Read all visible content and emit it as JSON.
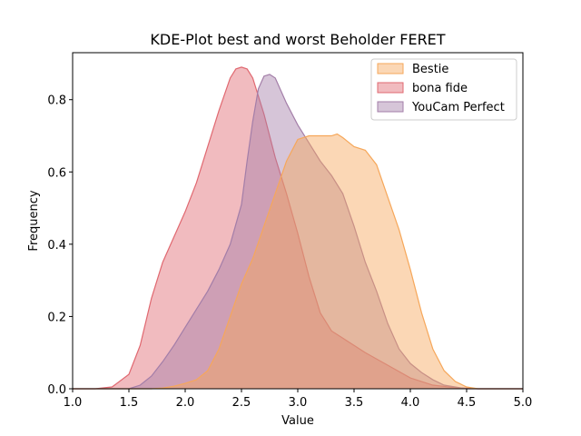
{
  "chart_data": {
    "type": "area",
    "title": "KDE-Plot best and worst Beholder FERET",
    "xlabel": "Value",
    "ylabel": "Frequency",
    "xlim": [
      1.0,
      5.0
    ],
    "ylim": [
      0.0,
      0.93
    ],
    "xticks": [
      "1.0",
      "1.5",
      "2.0",
      "2.5",
      "3.0",
      "3.5",
      "4.0",
      "4.5",
      "5.0"
    ],
    "yticks": [
      "0.0",
      "0.2",
      "0.4",
      "0.6",
      "0.8"
    ],
    "grid": false,
    "legend_position": "top-right",
    "series": [
      {
        "name": "bona fide",
        "color": "#e06870",
        "x": [
          1.0,
          1.2,
          1.35,
          1.5,
          1.6,
          1.7,
          1.8,
          1.9,
          2.0,
          2.1,
          2.2,
          2.3,
          2.4,
          2.45,
          2.5,
          2.55,
          2.6,
          2.7,
          2.8,
          2.9,
          3.0,
          3.1,
          3.2,
          3.3,
          3.4,
          3.5,
          3.6,
          3.8,
          4.0,
          4.2,
          4.4,
          4.6,
          5.0
        ],
        "y": [
          0.0,
          0.0,
          0.005,
          0.04,
          0.12,
          0.25,
          0.35,
          0.42,
          0.49,
          0.57,
          0.67,
          0.77,
          0.86,
          0.885,
          0.89,
          0.885,
          0.86,
          0.76,
          0.64,
          0.54,
          0.43,
          0.31,
          0.21,
          0.16,
          0.14,
          0.12,
          0.1,
          0.065,
          0.03,
          0.01,
          0.003,
          0.0,
          0.0
        ]
      },
      {
        "name": "YouCam Perfect",
        "color": "#a37ea8",
        "x": [
          1.0,
          1.5,
          1.6,
          1.7,
          1.8,
          1.9,
          2.0,
          2.1,
          2.2,
          2.3,
          2.4,
          2.5,
          2.55,
          2.6,
          2.65,
          2.7,
          2.75,
          2.8,
          2.9,
          3.0,
          3.1,
          3.2,
          3.3,
          3.4,
          3.5,
          3.6,
          3.7,
          3.8,
          3.9,
          4.0,
          4.1,
          4.2,
          4.3,
          4.5,
          5.0
        ],
        "y": [
          0.0,
          0.0,
          0.01,
          0.035,
          0.075,
          0.12,
          0.17,
          0.22,
          0.27,
          0.33,
          0.4,
          0.51,
          0.63,
          0.74,
          0.83,
          0.865,
          0.87,
          0.86,
          0.79,
          0.73,
          0.68,
          0.63,
          0.59,
          0.54,
          0.45,
          0.35,
          0.27,
          0.18,
          0.11,
          0.07,
          0.045,
          0.025,
          0.01,
          0.0,
          0.0
        ]
      },
      {
        "name": "Bestie",
        "color": "#f6a75a",
        "x": [
          1.0,
          1.7,
          1.8,
          1.9,
          2.0,
          2.1,
          2.2,
          2.3,
          2.4,
          2.5,
          2.6,
          2.7,
          2.8,
          2.9,
          3.0,
          3.1,
          3.2,
          3.3,
          3.35,
          3.4,
          3.5,
          3.6,
          3.7,
          3.8,
          3.9,
          4.0,
          4.1,
          4.2,
          4.3,
          4.4,
          4.5,
          4.6,
          5.0
        ],
        "y": [
          0.0,
          0.0,
          0.002,
          0.007,
          0.015,
          0.025,
          0.05,
          0.11,
          0.2,
          0.29,
          0.36,
          0.45,
          0.54,
          0.63,
          0.69,
          0.7,
          0.7,
          0.7,
          0.705,
          0.695,
          0.67,
          0.66,
          0.62,
          0.53,
          0.44,
          0.33,
          0.21,
          0.11,
          0.05,
          0.02,
          0.005,
          0.0,
          0.0
        ]
      }
    ],
    "legend_order": [
      "Bestie",
      "bona fide",
      "YouCam Perfect"
    ]
  }
}
